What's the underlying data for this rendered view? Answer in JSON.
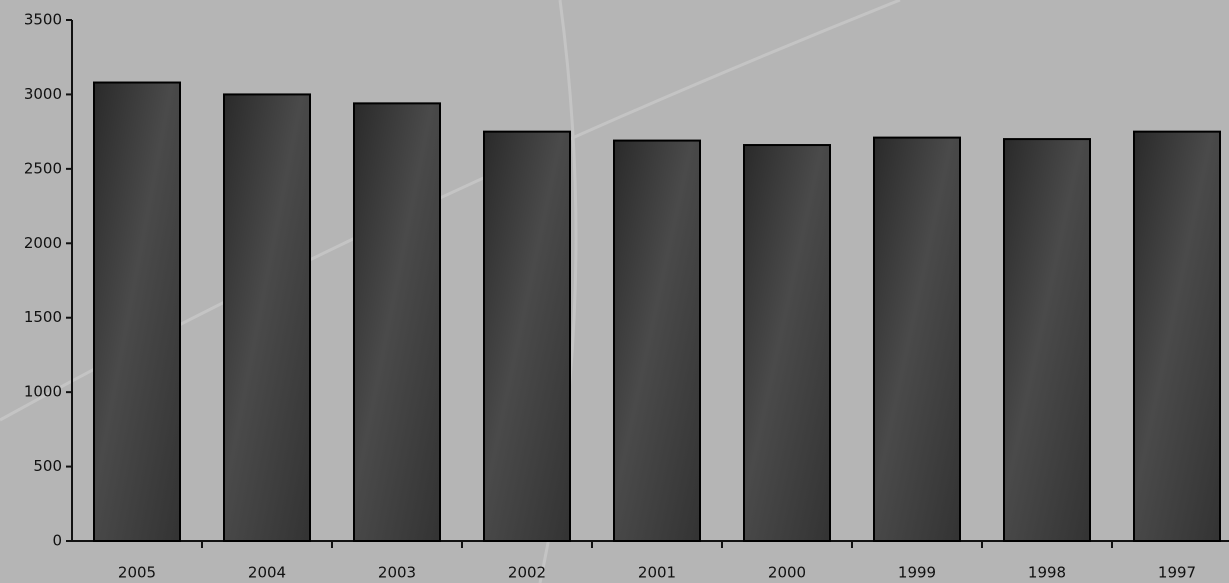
{
  "chart_data": {
    "type": "bar",
    "categories": [
      "2005",
      "2004",
      "2003",
      "2002",
      "2001",
      "2000",
      "1999",
      "1998",
      "1997"
    ],
    "values": [
      3080,
      3000,
      2940,
      2750,
      2690,
      2660,
      2710,
      2700,
      2750
    ],
    "color": "#4a4a4a",
    "ylim": [
      0,
      3500
    ],
    "yticks": [
      0,
      500,
      1000,
      1500,
      2000,
      2500,
      3000,
      3500
    ],
    "grid": false
  }
}
